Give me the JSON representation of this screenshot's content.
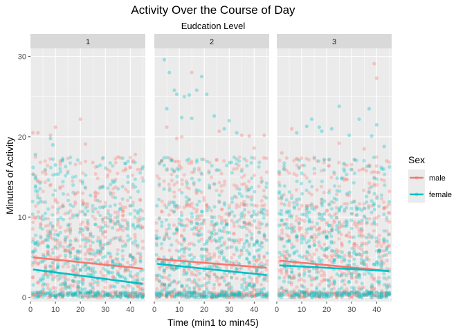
{
  "chart_data": {
    "type": "scatter",
    "title": "Activity Over the Course of Day",
    "subtitle": "Eudcation Level",
    "xlabel": "Time (min1 to min45)",
    "ylabel": "Minutes of Activity",
    "xlim": [
      0,
      46
    ],
    "ylim": [
      -0.5,
      31
    ],
    "x_ticks": [
      0,
      10,
      20,
      30,
      40
    ],
    "y_ticks": [
      0,
      10,
      20,
      30
    ],
    "grid": true,
    "legend": {
      "title": "Sex",
      "position": "right",
      "entries": [
        {
          "name": "male",
          "color": "#F8766D"
        },
        {
          "name": "female",
          "color": "#00BFC4"
        }
      ]
    },
    "panels": [
      {
        "label": "1",
        "trend": {
          "male": {
            "x": [
              1,
              45
            ],
            "y": [
              5.0,
              3.6
            ]
          },
          "female": {
            "x": [
              1,
              45
            ],
            "y": [
              3.5,
              1.7
            ]
          }
        },
        "outliers": [
          {
            "sex": "male",
            "x": [
              1,
              3,
              8,
              10,
              20,
              22,
              25,
              35,
              42
            ],
            "y": [
              20.5,
              20.5,
              20.2,
              21.2,
              22.2,
              19.1,
              16.8,
              17.5,
              17.8
            ]
          },
          {
            "sex": "female",
            "x": [
              2,
              8,
              9,
              10
            ],
            "y": [
              17.8,
              19.8,
              19.0,
              16.5
            ]
          }
        ]
      },
      {
        "label": "2",
        "trend": {
          "male": {
            "x": [
              1,
              45
            ],
            "y": [
              4.8,
              3.7
            ]
          },
          "female": {
            "x": [
              1,
              45
            ],
            "y": [
              4.2,
              2.8
            ]
          }
        },
        "outliers": [
          {
            "sex": "female",
            "x": [
              4,
              5,
              6,
              8,
              9,
              11,
              12,
              14,
              15,
              17,
              19,
              21,
              24,
              28,
              30,
              33
            ],
            "y": [
              29.6,
              23.5,
              28.0,
              25.8,
              25.3,
              22.4,
              25.0,
              25.2,
              22.3,
              25.8,
              27.5,
              25.3,
              22.6,
              21.0,
              22.0,
              20.5
            ]
          },
          {
            "sex": "male",
            "x": [
              5,
              9,
              11,
              15,
              26,
              35,
              38,
              40,
              44
            ],
            "y": [
              21.2,
              19.8,
              20.0,
              28.0,
              20.7,
              20.2,
              20.1,
              18.6,
              20.2
            ]
          }
        ]
      },
      {
        "label": "3",
        "trend": {
          "male": {
            "x": [
              1,
              45
            ],
            "y": [
              4.6,
              3.3
            ]
          },
          "female": {
            "x": [
              1,
              45
            ],
            "y": [
              4.0,
              3.3
            ]
          }
        },
        "outliers": [
          {
            "sex": "male",
            "x": [
              39,
              40,
              2,
              6,
              25,
              35,
              44
            ],
            "y": [
              29.1,
              27.3,
              18.0,
              21.0,
              19.2,
              18.5,
              17.0
            ]
          },
          {
            "sex": "female",
            "x": [
              8,
              12,
              14,
              17,
              18,
              22,
              25,
              29,
              33,
              37,
              38,
              40,
              43
            ],
            "y": [
              20.5,
              21.3,
              22.2,
              21.2,
              20.7,
              21.0,
              23.8,
              20.2,
              22.2,
              23.5,
              20.1,
              21.5,
              18.8
            ]
          }
        ]
      }
    ]
  }
}
